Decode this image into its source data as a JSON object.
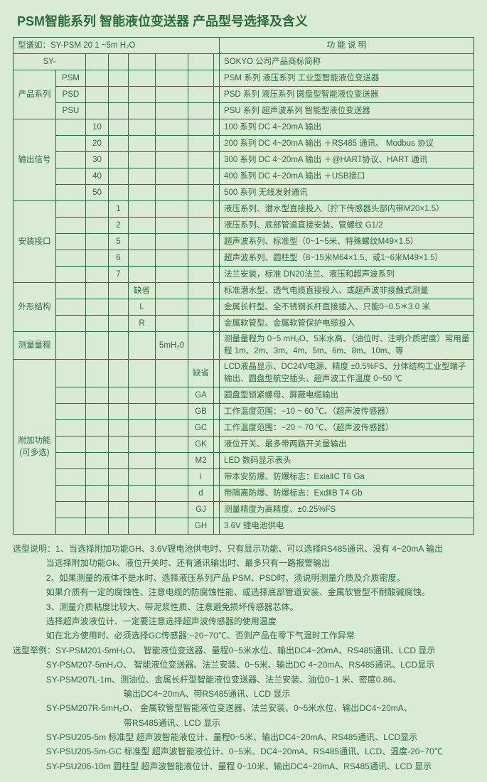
{
  "colors": {
    "bg": "#d9ebd5",
    "border": "#2a6b3a",
    "text": "#2a6b3a"
  },
  "title": "PSM智能系列 智能液位变送器 产品型号选择及含义",
  "header_left": "型谱如：SY-PSM 20 1 ~5m H₂O",
  "header_right": "功 能 说 明",
  "rows": [
    {
      "c": [
        "SY-",
        "",
        "",
        "",
        "",
        "",
        "",
        ""
      ],
      "d": "SOKYO 公司产品商标简称",
      "merge": "first_sy"
    },
    {
      "c": [
        "",
        "PSM",
        "",
        "",
        "",
        "",
        "",
        ""
      ],
      "d": "PSM 系列 液压系列 工业型智能液位变送器",
      "group": "产品系列",
      "gspan": 3
    },
    {
      "c": [
        "",
        "PSD",
        "",
        "",
        "",
        "",
        "",
        ""
      ],
      "d": "PSD 系列 液压系列 圆盘型智能液位变送器"
    },
    {
      "c": [
        "",
        "PSU",
        "",
        "",
        "",
        "",
        "",
        ""
      ],
      "d": "PSU 系列 超声波系列  智能型液位变送器"
    },
    {
      "c": [
        "",
        "",
        "10",
        "",
        "",
        "",
        "",
        ""
      ],
      "d": "100 系列 DC 4~20mA 输出",
      "group": "输出信号",
      "gspan": 5
    },
    {
      "c": [
        "",
        "",
        "20",
        "",
        "",
        "",
        "",
        ""
      ],
      "d": "200 系列 DC 4~20mA 输出 ＋RS485 通讯、 Modbus 协议"
    },
    {
      "c": [
        "",
        "",
        "30",
        "",
        "",
        "",
        "",
        ""
      ],
      "d": "300 系列 DC 4~20mA 输出 ＋@HART协议、HART 通讯"
    },
    {
      "c": [
        "",
        "",
        "40",
        "",
        "",
        "",
        "",
        ""
      ],
      "d": "400 系列 DC 4~20mA 输出 ＋USB接口"
    },
    {
      "c": [
        "",
        "",
        "50",
        "",
        "",
        "",
        "",
        ""
      ],
      "d": "500 系列   无线发射通讯"
    },
    {
      "c": [
        "",
        "",
        "",
        "1",
        "",
        "",
        "",
        ""
      ],
      "d": "液压系列、潜水型直接投入（拧下传感器头部内带M20×1.5）",
      "group": "安装接口",
      "gspan": 5
    },
    {
      "c": [
        "",
        "",
        "",
        "2",
        "",
        "",
        "",
        ""
      ],
      "d": "液压系列、底部管道直接安装、管螺纹 G1/2"
    },
    {
      "c": [
        "",
        "",
        "",
        "5",
        "",
        "",
        "",
        ""
      ],
      "d": "超声波系列、标准型（0~1~5米、特殊螺纹M49×1.5）"
    },
    {
      "c": [
        "",
        "",
        "",
        "6",
        "",
        "",
        "",
        ""
      ],
      "d": "超声波系列、圆柱型（8~15米M64×1.5、或1~6米M49×1.5）"
    },
    {
      "c": [
        "",
        "",
        "",
        "7",
        "",
        "",
        "",
        ""
      ],
      "d": "法兰安装，标准 DN20法兰、液压和超声波系列"
    },
    {
      "c": [
        "",
        "",
        "",
        "",
        "缺省",
        "",
        "",
        ""
      ],
      "d": "标准潜水型、透气电缆直接投入、或超声波非接触式测量",
      "group": "外形结构",
      "gspan": 3
    },
    {
      "c": [
        "",
        "",
        "",
        "",
        "L",
        "",
        "",
        ""
      ],
      "d": "金属长杆型、全不锈钢长杆直接插入、只能0~0.5＊3.0 米"
    },
    {
      "c": [
        "",
        "",
        "",
        "",
        "R",
        "",
        "",
        ""
      ],
      "d": "金属软管型、金属软管保护电缆投入"
    },
    {
      "c": [
        "",
        "",
        "",
        "",
        "",
        "5mH₂0",
        "",
        ""
      ],
      "d": "测量量程为 0~5 mH₂O、5米水高、（油位时、注明介质密度）常用量程 1m、2m、3m、4m、5m、6m、8m、10m、等",
      "group": "测量量程",
      "gspan": 1,
      "tall": true
    },
    {
      "c": [
        "",
        "",
        "",
        "",
        "",
        "",
        "缺省",
        ""
      ],
      "d": "LCD液晶显示、DC24V电源、精度 ±0.5%FS、分体结构工业型端子输出、圆盘型航空插头、超声波工作温度 0~50 ℃",
      "group": "附加功能(可多选)",
      "gspan": 10,
      "tall": true
    },
    {
      "c": [
        "",
        "",
        "",
        "",
        "",
        "",
        "GA",
        ""
      ],
      "d": "圆盘型锁紧螺母、屏蔽电缆输出"
    },
    {
      "c": [
        "",
        "",
        "",
        "",
        "",
        "",
        "GB",
        ""
      ],
      "d": "工作温度范围：−10 ~ 60 ℃、（超声波传感器）"
    },
    {
      "c": [
        "",
        "",
        "",
        "",
        "",
        "",
        "GC",
        ""
      ],
      "d": "工作温度范围：−20 ~ 70 ℃、（超声波传感器）"
    },
    {
      "c": [
        "",
        "",
        "",
        "",
        "",
        "",
        "GK",
        ""
      ],
      "d": "液位开关、最多带两路开关量输出"
    },
    {
      "c": [
        "",
        "",
        "",
        "",
        "",
        "",
        "M2",
        ""
      ],
      "d": "LED 数码显示表头"
    },
    {
      "c": [
        "",
        "",
        "",
        "",
        "",
        "",
        "i",
        ""
      ],
      "d": "带本安防爆、防爆标志：ExiaⅡC T6 Ga"
    },
    {
      "c": [
        "",
        "",
        "",
        "",
        "",
        "",
        "d",
        ""
      ],
      "d": "带隔离防爆、防爆标志：ExdⅡB T4 Gb"
    },
    {
      "c": [
        "",
        "",
        "",
        "",
        "",
        "",
        "GJ",
        ""
      ],
      "d": "测量精度为高精度、±0.25%FS"
    },
    {
      "c": [
        "",
        "",
        "",
        "",
        "",
        "",
        "GH",
        ""
      ],
      "d": "3.6V 锂电池供电"
    }
  ],
  "notes": {
    "sel_label": "选型说明：",
    "n1": "1、当选择附加功能GH、3.6V锂电池供电时、只有显示功能、可以选择RS485通讯、没有 4~20mA 输出",
    "n1b": "当选择附加功能Gk、液位开关时、还有通讯输出时、最多只有一路报警输出",
    "n2": "2、如果测量的液体不是水时、选择液压系列产品 PSM、PSD时、须说明测量介质及介质密度。",
    "n2b": "如果介质有一定的腐蚀性、注意电缆的防腐蚀性能、或选择底部管道安装、金属软管型不耐酸碱腐蚀。",
    "n3": "3、测量介质粘度比较大、带泥浆性质、注意避免损坏传感器芯体。",
    "n3b": "选择超声波液位计、一定要注意选择超声波传感器的使用温度",
    "n3c": "如在北方使用时、必须选择GC传感器:−20~70℃、否则产品在零下气温时工作异常",
    "ex_label": "选型举例：",
    "e1": "SY-PSM201-5mH₂O、   智能液位变送器、量程0~5米水位、输出DC4~20mA、RS485通讯、LCD 显示",
    "e2": "SY-PSM207-5mH₂O、   智能液位变送器、法兰安装、0~5米、输出DC 4~20mA、RS485通讯、LCD显示",
    "e3": "SY-PSM207L-1m、测油位、金属长杆型智能液位变送器、法兰安装、油位0~1 米、密度0.86、",
    "e3b": "输出DC4~20mA、带RS485通讯、LCD 显示",
    "e4": "SY-PSM207R-5mH₂O、 金属软管型智能液位变送器、法兰安装、0~5米水位、输出DC4~20mA、",
    "e4b": "带RS485通讯、LCD 显示",
    "e5": "SY-PSU205-5m       标准型 超声波智能液位计、量程0~5米、输出DC4~20mA、RS485通讯、LCD显示",
    "e6": "SY-PSU205-5m-GC  标准型 超声波智能液位计、0~5米、DC4~20mA、RS485通讯、LCD、温度-20~70℃",
    "e7": "SY-PSU206-10m      圆柱型 超声波智能液位计、量程 0~10米、输出DC4~20mA、RS485通讯、LCD 显示"
  }
}
